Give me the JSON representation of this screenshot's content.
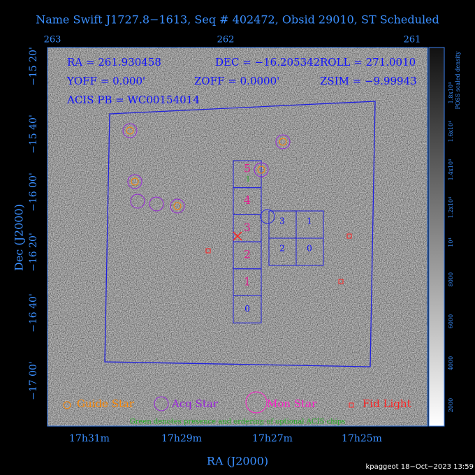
{
  "title": "Name Swift J1727.8−1613, Seq # 402472, Obsid 29010, ST Scheduled",
  "top_axis": {
    "ticks": [
      "263",
      "262",
      "261"
    ]
  },
  "left_axis": {
    "label": "Dec (J2000)",
    "ticks": [
      "−15 20'",
      "−15 40'",
      "−16 00'",
      "−16 20'",
      "−16 40'",
      "−17 00'"
    ]
  },
  "bottom_axis": {
    "label": "RA (J2000)",
    "ticks": [
      "17h31m",
      "17h29m",
      "17h27m",
      "17h25m"
    ]
  },
  "info": [
    "RA = 261.930458",
    "DEC = −16.205342",
    "ROLL = 271.0010",
    "YOFF =   0.000'",
    "ZOFF =  0.0000'",
    "ZSIM = −9.99943",
    "ACIS PB = WC00154014"
  ],
  "acis_s": {
    "chips": [
      "5",
      "4",
      "3",
      "2",
      "1",
      "0"
    ],
    "optional": "1"
  },
  "acis_i": {
    "chips": [
      "3",
      "1",
      "2",
      "0"
    ]
  },
  "legend": [
    "Guide Star",
    "Acq Star",
    "Mon Star",
    "Fid Light"
  ],
  "note": "Green denotes presence and ordering of optional ACIS chips",
  "colorbar": {
    "label": "POSS scaled density",
    "ticks": [
      "2000",
      "4000",
      "6000",
      "8000",
      "10⁴",
      "1.2x10⁴",
      "1.4x10⁴",
      "1.6x10⁴",
      "1.8x10⁴"
    ]
  },
  "footer": "kpaggeot 18−Oct−2023 13:59"
}
